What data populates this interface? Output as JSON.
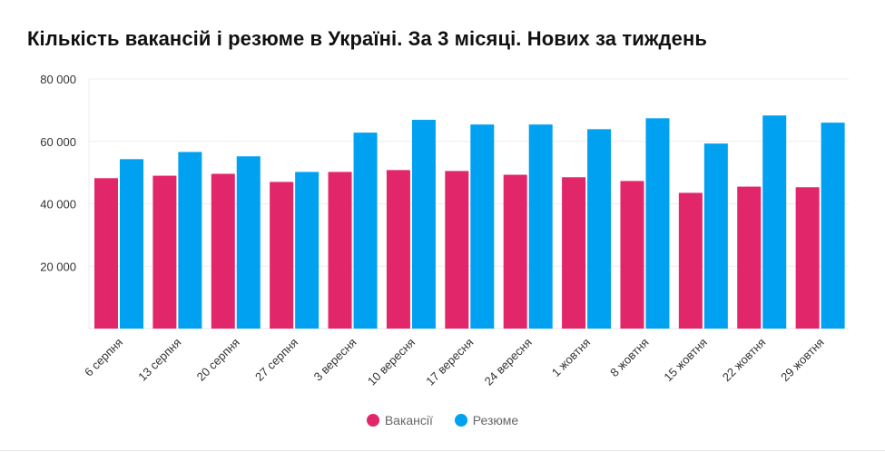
{
  "title": "Кількість вакансій і резюме в Україні. За 3 місяці. Нових за тиждень",
  "chart_data": {
    "type": "bar",
    "title": "Кількість вакансій і резюме в Україні. За 3 місяці. Нових за тиждень",
    "categories": [
      "6 серпня",
      "13 серпня",
      "20 серпня",
      "27 серпня",
      "3 вересня",
      "10 вересня",
      "17 вересня",
      "24 вересня",
      "1 жовтня",
      "8 жовтня",
      "15 жовтня",
      "22 жовтня",
      "29 жовтня"
    ],
    "series": [
      {
        "name": "Вакансії",
        "color": "#e2266a",
        "values": [
          48200,
          49000,
          49600,
          47000,
          50200,
          50800,
          50500,
          49300,
          48500,
          47300,
          43500,
          45500,
          45300
        ]
      },
      {
        "name": "Резюме",
        "color": "#00a1f1",
        "values": [
          54300,
          56600,
          55200,
          50200,
          62800,
          66900,
          65400,
          65400,
          63900,
          67400,
          59300,
          68300,
          66000
        ]
      }
    ],
    "yticks": [
      "20 000",
      "40 000",
      "60 000",
      "80 000"
    ],
    "ytick_values": [
      20000,
      40000,
      60000,
      80000
    ],
    "ylim": [
      0,
      80000
    ],
    "grid": true,
    "legend": "bottom-center",
    "xlabel": "",
    "ylabel": ""
  }
}
